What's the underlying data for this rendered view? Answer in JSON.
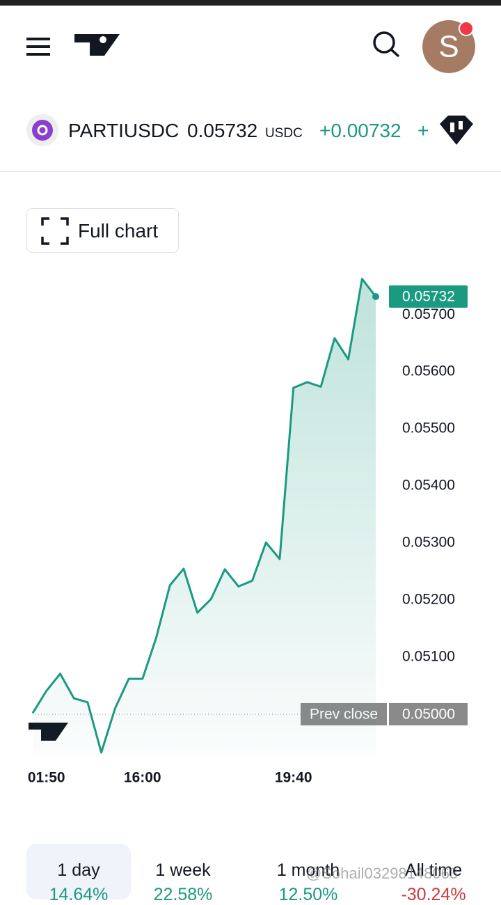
{
  "header": {
    "symbol": "PARTIUSDC",
    "price": "0.05732",
    "currency": "USDC",
    "change": "+0.00732",
    "add": "+"
  },
  "full_chart": "Full chart",
  "chart_data": {
    "type": "area",
    "color": "#1a9a80",
    "categories": [
      null,
      "01:50",
      null,
      null,
      null,
      null,
      null,
      null,
      "16:00",
      null,
      null,
      null,
      null,
      null,
      null,
      null,
      null,
      null,
      null,
      "19:40",
      null,
      null,
      null,
      null,
      null,
      null
    ],
    "values": [
      0.05002,
      0.05041,
      0.05071,
      0.05028,
      0.05021,
      0.04933,
      0.0501,
      0.05062,
      0.05062,
      0.05134,
      0.05226,
      0.05255,
      0.05178,
      0.05202,
      0.05254,
      0.05224,
      0.05234,
      0.05301,
      0.05272,
      0.05572,
      0.05582,
      0.05574,
      0.05659,
      0.05622,
      0.05763,
      0.05732
    ],
    "ylim": [
      0.04928,
      0.05782
    ],
    "yticks": [
      {
        "value": 0.051,
        "label": "0.05100"
      },
      {
        "value": 0.052,
        "label": "0.05200"
      },
      {
        "value": 0.053,
        "label": "0.05300"
      },
      {
        "value": 0.054,
        "label": "0.05400"
      },
      {
        "value": 0.055,
        "label": "0.05500"
      },
      {
        "value": 0.056,
        "label": "0.05600"
      },
      {
        "value": 0.057,
        "label": "0.05700"
      }
    ],
    "last_label": "0.05732",
    "prev_close": {
      "value": 0.05,
      "label": "0.05000"
    },
    "prev_close_text": "Prev close"
  },
  "tabs": [
    {
      "name": "1 day",
      "change": "14.64%",
      "color": "#1a9a80"
    },
    {
      "name": "1 week",
      "change": "22.58%",
      "color": "#1a9a80"
    },
    {
      "name": "1 month",
      "change": "12.50%",
      "color": "#1a9a80"
    },
    {
      "name": "All time",
      "change": "-30.24%",
      "color": "#d03a3a"
    }
  ],
  "watermark": "@Sohail03298148063"
}
